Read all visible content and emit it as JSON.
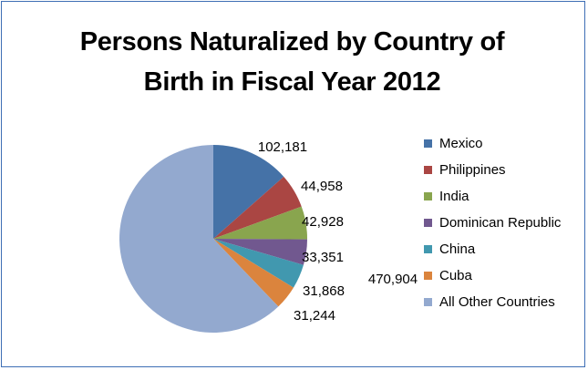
{
  "chart_data": {
    "type": "pie",
    "title": [
      "Persons Naturalized by Country of",
      "Birth in Fiscal Year 2012"
    ],
    "categories": [
      "Mexico",
      "Philippines",
      "India",
      "Dominican Republic",
      "China",
      "Cuba",
      "All Other Countries"
    ],
    "values": [
      102181,
      44958,
      42928,
      33351,
      31868,
      31244,
      470904
    ],
    "value_labels": [
      "102,181",
      "44,958",
      "42,928",
      "33,351",
      "31,868",
      "31,244",
      "470,904"
    ],
    "colors": [
      "#4572a7",
      "#aa4643",
      "#89a54e",
      "#71588f",
      "#4198af",
      "#db843d",
      "#93a9cf"
    ],
    "legend_position": "right",
    "start_angle": "top, clockwise"
  }
}
